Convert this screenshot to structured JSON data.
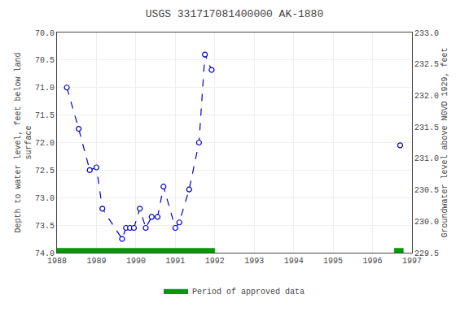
{
  "chart_data": {
    "type": "line",
    "title": "USGS 331717081400000 AK-1880",
    "y_label": "Depth to water level, feet below land\nsurface",
    "y2_label": "Groundwater level above NGVD 1929, feet",
    "xlim": [
      1988,
      1997
    ],
    "xticks": [
      1988,
      1989,
      1990,
      1991,
      1992,
      1993,
      1994,
      1995,
      1996,
      1997
    ],
    "ylim": [
      74.0,
      70.0
    ],
    "yticks": [
      {
        "value": 70.0,
        "label": "70.0"
      },
      {
        "value": 70.5,
        "label": "70.5"
      },
      {
        "value": 71.0,
        "label": "71.0"
      },
      {
        "value": 71.5,
        "label": "71.5"
      },
      {
        "value": 72.0,
        "label": "72.0"
      },
      {
        "value": 72.5,
        "label": "72.5"
      },
      {
        "value": 73.0,
        "label": "73.0"
      },
      {
        "value": 73.5,
        "label": "73.5"
      },
      {
        "value": 74.0,
        "label": "74.0"
      }
    ],
    "y2lim": [
      229.5,
      233.0
    ],
    "y2ticks": [
      {
        "value": 233.0,
        "label": "233.0"
      },
      {
        "value": 232.5,
        "label": "232.5"
      },
      {
        "value": 232.0,
        "label": "232.0"
      },
      {
        "value": 231.5,
        "label": "231.5"
      },
      {
        "value": 231.0,
        "label": "231.0"
      },
      {
        "value": 230.5,
        "label": "230.5"
      },
      {
        "value": 230.0,
        "label": "230.0"
      },
      {
        "value": 229.5,
        "label": "229.5"
      }
    ],
    "grid": true,
    "legend": "bottom",
    "series": [
      {
        "type": "line",
        "color": "#0000cc",
        "line_style": "dashed",
        "marker": "circle",
        "x": [
          1988.25,
          1988.55,
          1988.83,
          1989.0,
          1989.15,
          1989.65,
          1989.75,
          1989.85,
          1989.95,
          1990.1,
          1990.25,
          1990.4,
          1990.55,
          1990.7,
          1991.0,
          1991.1,
          1991.35,
          1991.6,
          1991.75,
          1991.92,
          null,
          1996.7
        ],
        "values": [
          71.0,
          71.75,
          72.5,
          72.45,
          73.2,
          73.75,
          73.55,
          73.55,
          73.55,
          73.2,
          73.55,
          73.35,
          73.35,
          72.8,
          73.55,
          73.45,
          72.85,
          72.0,
          70.4,
          70.68,
          null,
          72.05
        ]
      },
      {
        "name": "Period of approved data",
        "type": "band",
        "color": "#009900",
        "ranges": [
          [
            1988.0,
            1992.0
          ],
          [
            1996.55,
            1996.78
          ]
        ],
        "y": 74.0,
        "height": 0.08
      }
    ]
  }
}
